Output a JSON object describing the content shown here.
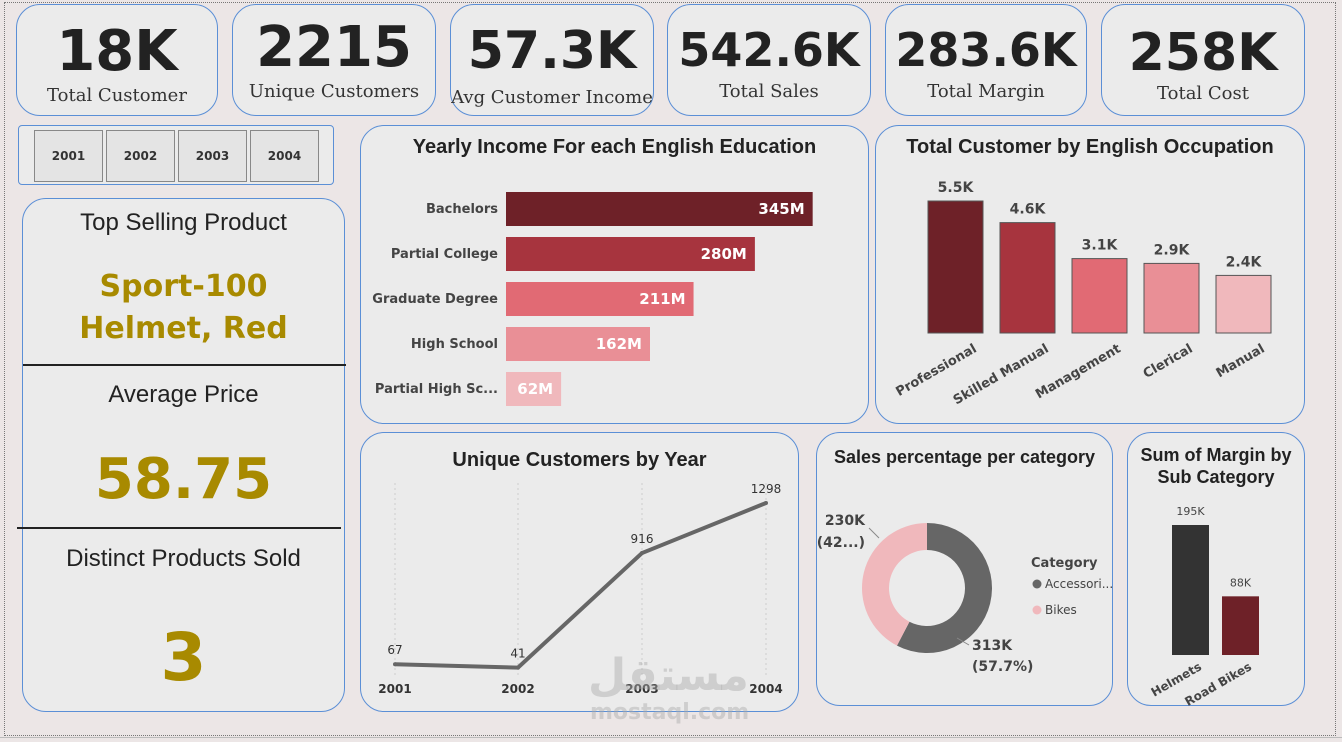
{
  "kpis": [
    {
      "value": "18K",
      "label": "Total Customer"
    },
    {
      "value": "2215",
      "label": "Unique Customers"
    },
    {
      "value": "57.3K",
      "label": "Avg Customer Income"
    },
    {
      "value": "542.6K",
      "label": "Total Sales"
    },
    {
      "value": "283.6K",
      "label": "Total Margin"
    },
    {
      "value": "258K",
      "label": "Total Cost"
    }
  ],
  "slicer": {
    "years": [
      "2001",
      "2002",
      "2003",
      "2004"
    ]
  },
  "left_panel": {
    "top_title": "Top Selling Product",
    "top_product_line1": "Sport-100",
    "top_product_line2": "Helmet, Red",
    "avg_title": "Average Price",
    "avg_value": "58.75",
    "distinct_title": "Distinct Products Sold",
    "distinct_value": "3"
  },
  "watermark": {
    "line1": "مستقل",
    "line2": "mostaql.com"
  },
  "chart_data": [
    {
      "type": "bar",
      "orientation": "horizontal",
      "title": "Yearly Income For each English Education",
      "categories": [
        "Bachelors",
        "Partial College",
        "Graduate Degree",
        "High School",
        "Partial High Sc..."
      ],
      "values": [
        345,
        280,
        211,
        162,
        62
      ],
      "labels": [
        "345M",
        "280M",
        "211M",
        "162M",
        "62M"
      ],
      "unit": "M",
      "colors": [
        "#6e2128",
        "#a7343e",
        "#e16a74",
        "#e98f96",
        "#f0b8bc"
      ]
    },
    {
      "type": "bar",
      "title": "Total Customer by English Occupation",
      "categories": [
        "Professional",
        "Skilled Manual",
        "Management",
        "Clerical",
        "Manual"
      ],
      "values": [
        5.5,
        4.6,
        3.1,
        2.9,
        2.4
      ],
      "labels": [
        "5.5K",
        "4.6K",
        "3.1K",
        "2.9K",
        "2.4K"
      ],
      "unit": "K",
      "colors": [
        "#6e2128",
        "#a7343e",
        "#e16a74",
        "#e98f96",
        "#f0b8bc"
      ]
    },
    {
      "type": "line",
      "title": "Unique Customers by Year",
      "x": [
        "2001",
        "2002",
        "2003",
        "2004"
      ],
      "values": [
        67,
        41,
        916,
        1298
      ],
      "color": "#666666"
    },
    {
      "type": "pie",
      "title": "Sales percentage per category",
      "legend_title": "Category",
      "legend_position": "right",
      "slices": [
        {
          "name": "Accessori...",
          "value": 313,
          "label": "313K",
          "pct_label": "(57.7%)",
          "color": "#666666"
        },
        {
          "name": "Bikes",
          "value": 230,
          "label": "230K",
          "pct_label": "(42...)",
          "color": "#f0b8bc"
        }
      ]
    },
    {
      "type": "bar",
      "title_line1": "Sum of Margin by",
      "title_line2": "Sub Category",
      "categories": [
        "Helmets",
        "Road Bikes"
      ],
      "values": [
        195,
        88
      ],
      "labels": [
        "195K",
        "88K"
      ],
      "unit": "K",
      "colors": [
        "#333333",
        "#6e2128"
      ]
    }
  ]
}
